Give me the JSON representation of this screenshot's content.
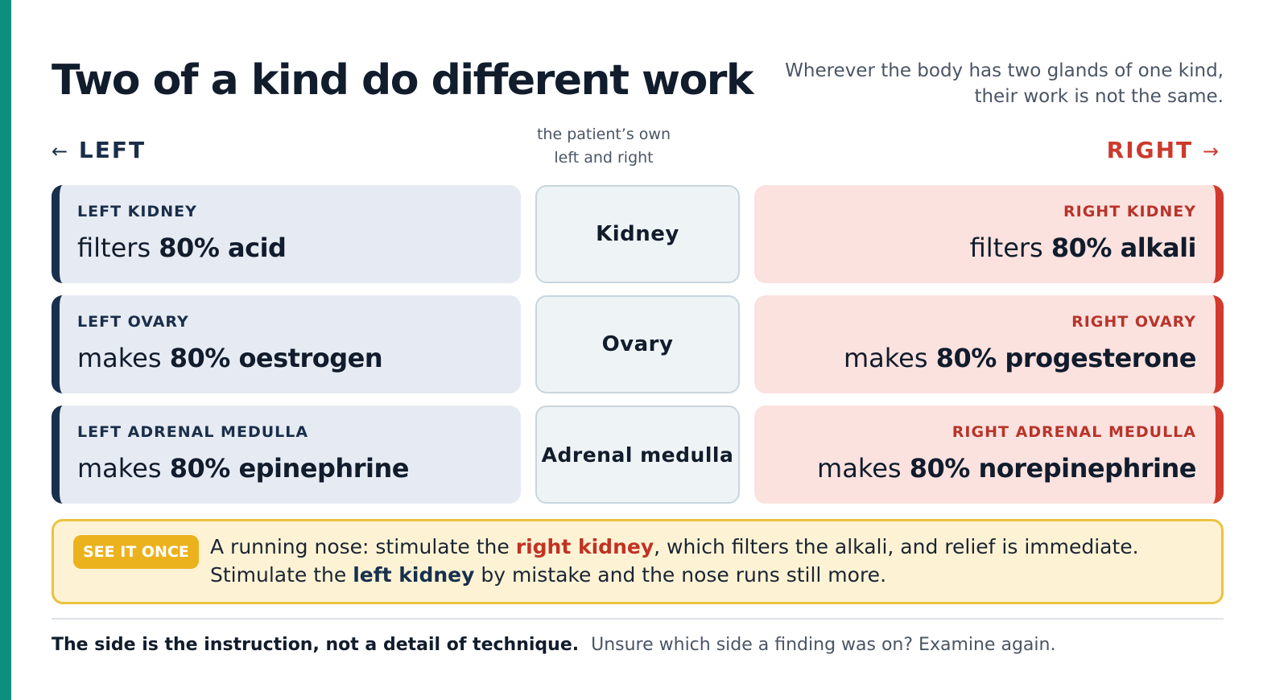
{
  "colors": {
    "accent_stripe": "#0e8f7e",
    "left": "#17304d",
    "right": "#d23a2c",
    "left_card_bg": "#e6ebf3",
    "right_card_bg": "#fbe2df",
    "callout_bg": "#fdf3d4",
    "callout_border": "#ecc140",
    "badge": "#ebb21d"
  },
  "header": {
    "title": "Two of a kind do different work",
    "subtitle_line1": "Wherever the body has two glands of one kind,",
    "subtitle_line2": "their work is not the same."
  },
  "sides": {
    "left_arrow": "←",
    "left_label": "LEFT",
    "right_label": "RIGHT",
    "right_arrow": "→",
    "note_line1": "the patient’s own",
    "note_line2": "left and right"
  },
  "rows": [
    {
      "organ": "Kidney",
      "left": {
        "label": "LEFT KIDNEY",
        "verb": "filters ",
        "value": "80% acid"
      },
      "right": {
        "label": "RIGHT KIDNEY",
        "verb": "filters ",
        "value": "80% alkali"
      }
    },
    {
      "organ": "Ovary",
      "left": {
        "label": "LEFT OVARY",
        "verb": "makes ",
        "value": "80% oestrogen"
      },
      "right": {
        "label": "RIGHT OVARY",
        "verb": "makes ",
        "value": "80% progesterone"
      }
    },
    {
      "organ": "Adrenal medulla",
      "left": {
        "label": "LEFT ADRENAL MEDULLA",
        "verb": "makes ",
        "value": "80% epinephrine"
      },
      "right": {
        "label": "RIGHT ADRENAL MEDULLA",
        "verb": "makes ",
        "value": "80% norepinephrine"
      }
    }
  ],
  "callout": {
    "badge": "SEE IT ONCE",
    "line1_a": "A running nose: stimulate the ",
    "line1_highlight": "right kidney",
    "line1_b": ", which filters the alkali, and relief is immediate.",
    "line2_a": "Stimulate the ",
    "line2_highlight": "left kidney",
    "line2_b": " by mistake and the nose runs still more."
  },
  "footer": {
    "lead": "The side is the instruction, not a detail of technique.",
    "rest": "Unsure which side a finding was on? Examine again."
  }
}
